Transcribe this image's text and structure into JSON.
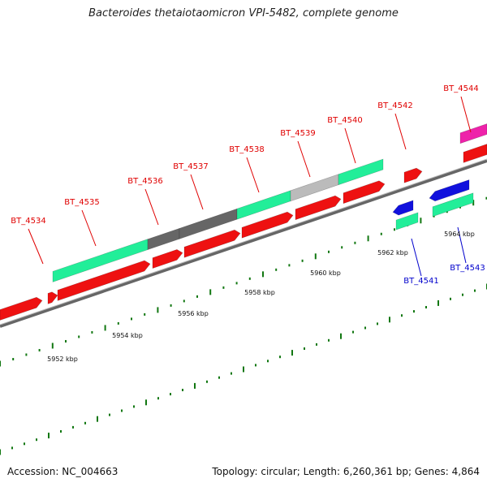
{
  "title": "Bacteroides thetaiotaomicron VPI-5482, complete genome",
  "footer": {
    "accession": "Accession: NC_004663",
    "summary": "Topology: circular; Length: 6,260,361 bp; Genes: 4,864"
  },
  "colors": {
    "cds_forward": "#ee1111",
    "cds_reverse": "#1111dd",
    "feature_green": "#22ee99",
    "feature_dark": "#666666",
    "feature_light": "#bbbbbb",
    "feature_magenta": "#ee22aa",
    "label_forward": "#e00000",
    "label_reverse": "#0000cc",
    "tick": "#117711"
  },
  "scale": {
    "ticks": [
      {
        "label": "5952 kbp"
      },
      {
        "label": "5954 kbp"
      },
      {
        "label": "5956 kbp"
      },
      {
        "label": "5958 kbp"
      },
      {
        "label": "5960 kbp"
      },
      {
        "label": "5962 kbp"
      },
      {
        "label": "5964 kbp"
      }
    ]
  },
  "genes": [
    {
      "name": "BT_4534",
      "strand": "+"
    },
    {
      "name": "BT_4535",
      "strand": "+"
    },
    {
      "name": "BT_4536",
      "strand": "+"
    },
    {
      "name": "BT_4537",
      "strand": "+"
    },
    {
      "name": "BT_4538",
      "strand": "+"
    },
    {
      "name": "BT_4539",
      "strand": "+"
    },
    {
      "name": "BT_4540",
      "strand": "+"
    },
    {
      "name": "BT_4542",
      "strand": "+"
    },
    {
      "name": "BT_4544",
      "strand": "+"
    },
    {
      "name": "BT_4541",
      "strand": "-"
    },
    {
      "name": "BT_4543",
      "strand": "-"
    }
  ]
}
